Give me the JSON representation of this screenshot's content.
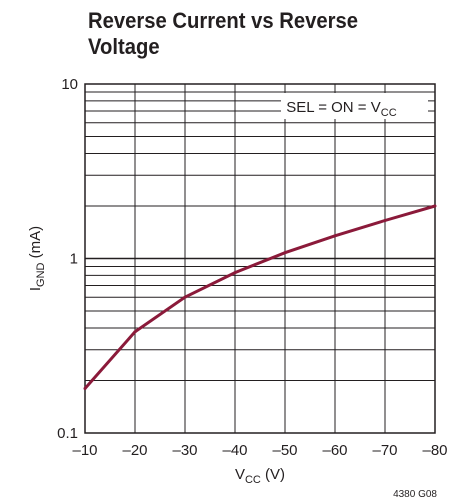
{
  "chart_data": {
    "type": "line",
    "title": "Reverse Current vs Reverse Voltage",
    "xlabel": {
      "main": "V",
      "sub": "CC",
      "unit": " (V)"
    },
    "ylabel": {
      "main": "I",
      "sub": "GND",
      "unit": " (mA)"
    },
    "xlim": [
      -10,
      -80
    ],
    "ylim": [
      0.1,
      10
    ],
    "yscale": "log",
    "grid": true,
    "x_ticks": [
      "–10",
      "–20",
      "–30",
      "–40",
      "–50",
      "–60",
      "–70",
      "–80"
    ],
    "y_ticks": [
      "0.1",
      "1",
      "10"
    ],
    "annotation": {
      "text": "SEL = ON = V",
      "sub": "CC"
    },
    "figure_code": "4380 G08",
    "line_color": "#8b1a3a",
    "series": [
      {
        "x": [
          -10,
          -20,
          -30,
          -40,
          -50,
          -60,
          -70,
          -80
        ],
        "y": [
          0.18,
          0.38,
          0.6,
          0.83,
          1.08,
          1.35,
          1.65,
          2.0
        ]
      }
    ]
  }
}
